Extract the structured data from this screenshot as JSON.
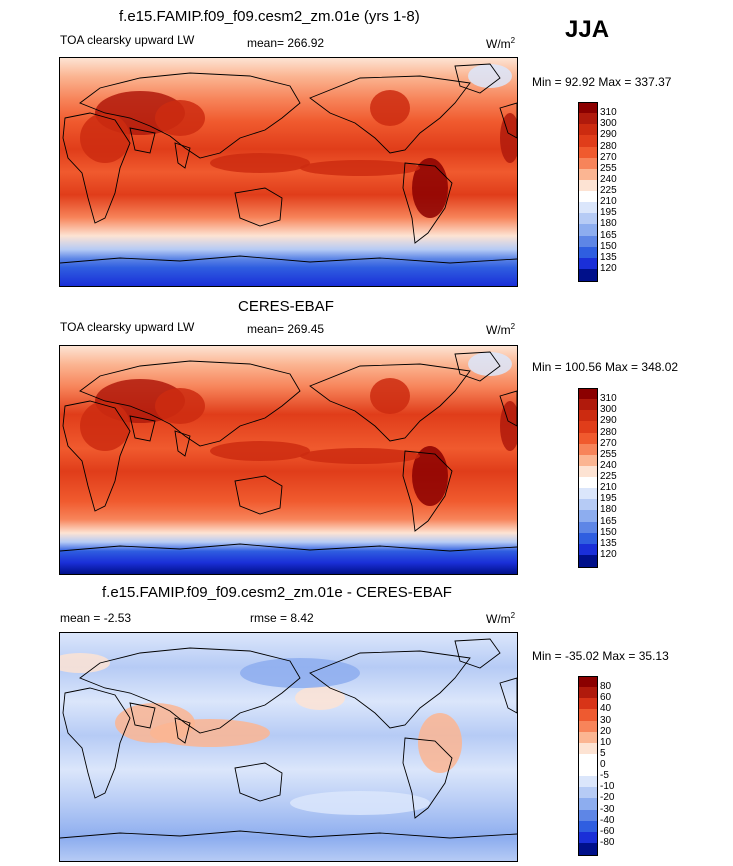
{
  "season": "JJA",
  "panels": [
    {
      "title": "f.e15.FAMIP.f09_f09.cesm2_zm.01e (yrs 1-8)",
      "left_label": "TOA clearsky upward LW",
      "center_label": "mean= 266.92",
      "units": "W/m",
      "units_sup": "2",
      "minmax": "Min =  92.92 Max = 337.37",
      "colorbar": {
        "labels": [
          "310",
          "300",
          "290",
          "280",
          "270",
          "255",
          "240",
          "225",
          "210",
          "195",
          "180",
          "165",
          "150",
          "135",
          "120"
        ],
        "colors": [
          "#8b0000",
          "#b01a0c",
          "#cc2b10",
          "#e03d1a",
          "#f05a2e",
          "#f7845a",
          "#fbb592",
          "#fde3d3",
          "#ffffff",
          "#dbe6fb",
          "#b6cbf5",
          "#8dadef",
          "#5e86e6",
          "#2f5ee0",
          "#1a2fd8",
          "#00108a"
        ]
      },
      "map_style": "model"
    },
    {
      "title": "CERES-EBAF",
      "left_label": "TOA clearsky upward LW",
      "center_label": "mean= 269.45",
      "units": "W/m",
      "units_sup": "2",
      "minmax": "Min = 100.56 Max = 348.02",
      "colorbar": {
        "labels": [
          "310",
          "300",
          "290",
          "280",
          "270",
          "255",
          "240",
          "225",
          "210",
          "195",
          "180",
          "165",
          "150",
          "135",
          "120"
        ],
        "colors": [
          "#8b0000",
          "#b01a0c",
          "#cc2b10",
          "#e03d1a",
          "#f05a2e",
          "#f7845a",
          "#fbb592",
          "#fde3d3",
          "#ffffff",
          "#dbe6fb",
          "#b6cbf5",
          "#8dadef",
          "#5e86e6",
          "#2f5ee0",
          "#1a2fd8",
          "#00108a"
        ]
      },
      "map_style": "obs"
    },
    {
      "title": "f.e15.FAMIP.f09_f09.cesm2_zm.01e - CERES-EBAF",
      "left_label": "mean =  -2.53",
      "center_label": "rmse =   8.42",
      "units": "W/m",
      "units_sup": "2",
      "minmax": "Min = -35.02 Max =  35.13",
      "colorbar": {
        "labels": [
          "80",
          "60",
          "40",
          "30",
          "20",
          "10",
          "5",
          "0",
          "-5",
          "-10",
          "-20",
          "-30",
          "-40",
          "-60",
          "-80"
        ],
        "colors": [
          "#8b0000",
          "#b01a0c",
          "#d83418",
          "#ee5a30",
          "#f7845a",
          "#fbb592",
          "#fde3d3",
          "#ffffff",
          "#ffffff",
          "#dbe6fb",
          "#b6cbf5",
          "#8dadef",
          "#5e86e6",
          "#2f5ee0",
          "#1a2fd8",
          "#00108a"
        ]
      },
      "map_style": "diff"
    }
  ]
}
